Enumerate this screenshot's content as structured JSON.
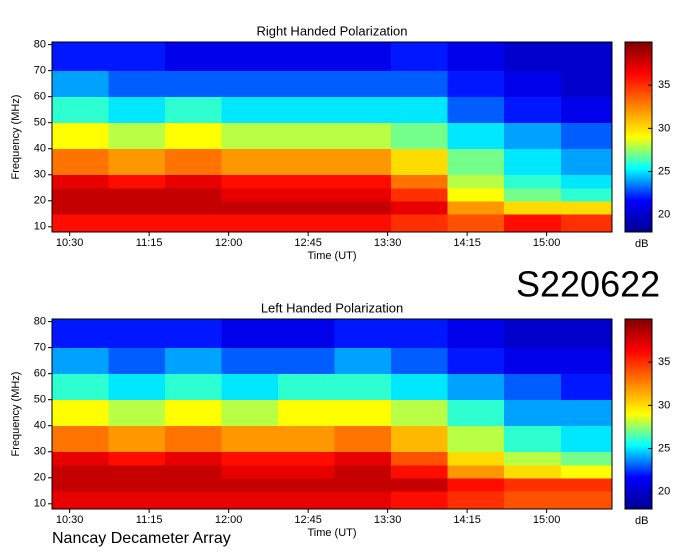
{
  "chart_data": [
    {
      "type": "heatmap",
      "title": "Right Handed Polarization",
      "x_label": "Time (UT)",
      "y_label": "Frequency (MHz)",
      "colorbar_label": "dB",
      "x": [
        620,
        652,
        684,
        716,
        748,
        780,
        812,
        844,
        876,
        908,
        937
      ],
      "y": [
        8,
        15,
        20,
        25,
        30,
        40,
        50,
        60,
        70,
        81
      ],
      "z": [
        [
          36,
          36,
          36,
          36,
          36,
          36,
          35,
          34,
          36,
          35
        ],
        [
          38,
          38,
          38,
          38,
          38,
          38,
          37,
          32,
          30,
          30
        ],
        [
          38,
          38,
          38,
          37,
          37,
          37,
          35,
          29,
          27,
          26
        ],
        [
          37,
          36,
          37,
          36,
          36,
          36,
          33,
          28,
          26,
          25
        ],
        [
          33,
          32,
          33,
          32,
          32,
          32,
          30,
          27,
          25,
          24
        ],
        [
          29,
          28,
          29,
          28,
          28,
          28,
          27,
          25,
          24,
          23
        ],
        [
          26,
          25,
          26,
          25,
          25,
          25,
          25,
          23,
          22,
          21
        ],
        [
          24,
          23,
          23,
          23,
          23,
          23,
          23,
          22,
          21,
          20
        ],
        [
          22,
          22,
          21,
          21,
          21,
          21,
          22,
          21,
          20,
          20
        ]
      ],
      "xlim": [
        620,
        937
      ],
      "ylim": [
        8,
        81
      ],
      "zlim": [
        18,
        40
      ],
      "xticks": [
        {
          "value": 630,
          "label": "10:30"
        },
        {
          "value": 675,
          "label": "11:15"
        },
        {
          "value": 720,
          "label": "12:00"
        },
        {
          "value": 765,
          "label": "12:45"
        },
        {
          "value": 810,
          "label": "13:30"
        },
        {
          "value": 855,
          "label": "14:15"
        },
        {
          "value": 900,
          "label": "15:00"
        }
      ],
      "yticks": [
        10,
        20,
        30,
        40,
        50,
        60,
        70,
        80
      ],
      "zticks": [
        20,
        25,
        30,
        35
      ],
      "colormap": [
        "#00008f",
        "#0000ff",
        "#00ffff",
        "#ffff00",
        "#ff8000",
        "#ff0000",
        "#800000"
      ]
    },
    {
      "type": "heatmap",
      "title": "Left Handed Polarization",
      "x_label": "Time (UT)",
      "y_label": "Frequency (MHz)",
      "colorbar_label": "dB",
      "x": [
        620,
        652,
        684,
        716,
        748,
        780,
        812,
        844,
        876,
        908,
        937
      ],
      "y": [
        8,
        15,
        20,
        25,
        30,
        40,
        50,
        60,
        70,
        81
      ],
      "z": [
        [
          37,
          37,
          37,
          37,
          37,
          37,
          36,
          35,
          34,
          34
        ],
        [
          38,
          38,
          38,
          38,
          38,
          38,
          38,
          36,
          35,
          35
        ],
        [
          38,
          38,
          38,
          37,
          37,
          38,
          36,
          32,
          30,
          29
        ],
        [
          37,
          36,
          37,
          36,
          36,
          37,
          34,
          30,
          28,
          27
        ],
        [
          33,
          32,
          33,
          32,
          32,
          33,
          31,
          28,
          26,
          25
        ],
        [
          29,
          28,
          29,
          28,
          29,
          29,
          28,
          26,
          24,
          24
        ],
        [
          26,
          25,
          26,
          25,
          26,
          26,
          25,
          24,
          23,
          22
        ],
        [
          24,
          23,
          24,
          23,
          23,
          24,
          23,
          22,
          21,
          21
        ],
        [
          22,
          22,
          22,
          21,
          21,
          22,
          22,
          21,
          20,
          20
        ]
      ],
      "xlim": [
        620,
        937
      ],
      "ylim": [
        8,
        81
      ],
      "zlim": [
        18,
        40
      ],
      "xticks": [
        {
          "value": 630,
          "label": "10:30"
        },
        {
          "value": 675,
          "label": "11:15"
        },
        {
          "value": 720,
          "label": "12:00"
        },
        {
          "value": 765,
          "label": "12:45"
        },
        {
          "value": 810,
          "label": "13:30"
        },
        {
          "value": 855,
          "label": "14:15"
        },
        {
          "value": 900,
          "label": "15:00"
        }
      ],
      "yticks": [
        10,
        20,
        30,
        40,
        50,
        60,
        70,
        80
      ],
      "zticks": [
        20,
        25,
        30,
        35
      ],
      "colormap": [
        "#00008f",
        "#0000ff",
        "#00ffff",
        "#ffff00",
        "#ff8000",
        "#ff0000",
        "#800000"
      ]
    }
  ],
  "event_id": "S220622",
  "instrument": "Nancay Decameter Array"
}
